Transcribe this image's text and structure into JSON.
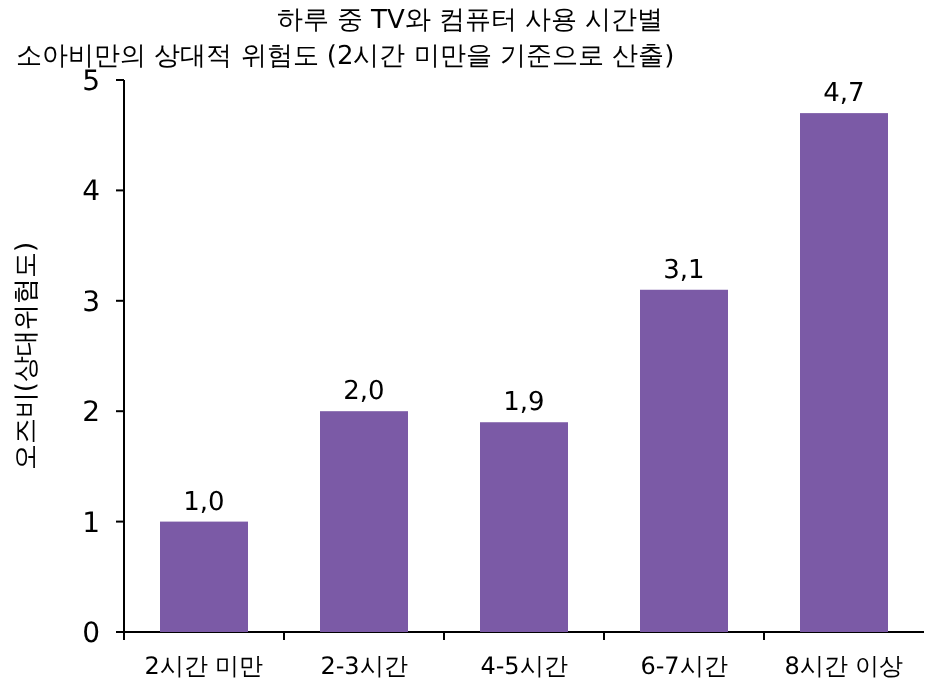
{
  "chart_data": {
    "type": "bar",
    "title": "하루 중 TV와 컴퓨터 사용 시간별",
    "subtitle": "소아비만의 상대적 위험도 (2시간 미만을 기준으로 산출)",
    "ylabel": "오즈비(상대위험도)",
    "categories": [
      "2시간 미만",
      "2-3시간",
      "4-5시간",
      "6-7시간",
      "8시간 이상"
    ],
    "values": [
      1.0,
      2.0,
      1.9,
      3.1,
      4.7
    ],
    "value_labels": [
      "1,0",
      "2,0",
      "1,9",
      "3,1",
      "4,7"
    ],
    "color": "#7b5aa6",
    "ylim": [
      0,
      5
    ],
    "yticks": [
      0,
      1,
      2,
      3,
      4,
      5
    ],
    "grid": false
  }
}
